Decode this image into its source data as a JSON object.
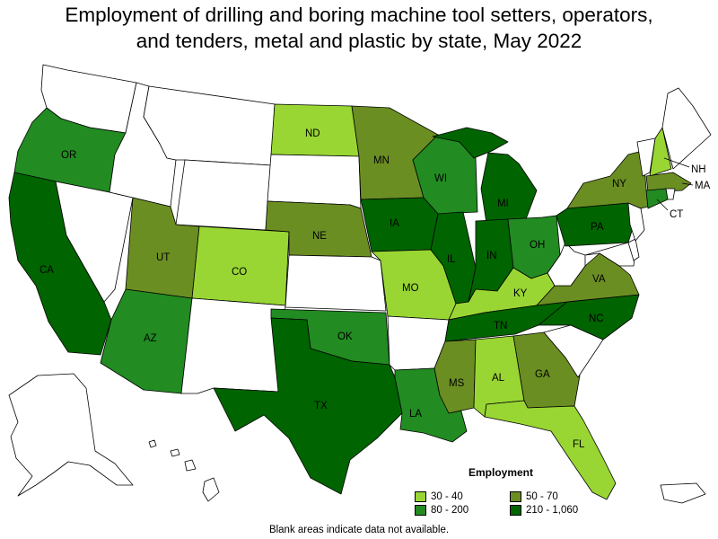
{
  "title_line1": "Employment of drilling and boring machine tool setters, operators,",
  "title_line2": "and tenders, metal and plastic by state, May 2022",
  "legend": {
    "title": "Employment",
    "items": [
      {
        "label": "30 - 40",
        "color": "#99d633"
      },
      {
        "label": "50 - 70",
        "color": "#6b8e23"
      },
      {
        "label": "80 - 200",
        "color": "#228b22"
      },
      {
        "label": "210 - 1,060",
        "color": "#006400"
      }
    ]
  },
  "footnote": "Blank areas indicate data not available.",
  "states": {
    "WA": "",
    "OR": "OR",
    "CA": "CA",
    "NV": "",
    "ID": "",
    "MT": "",
    "WY": "",
    "UT": "UT",
    "AZ": "AZ",
    "CO": "CO",
    "NM": "",
    "ND": "ND",
    "SD": "",
    "NE": "NE",
    "KS": "",
    "OK": "OK",
    "TX": "TX",
    "MN": "MN",
    "IA": "IA",
    "MO": "MO",
    "AR": "",
    "LA": "LA",
    "WI": "WI",
    "IL": "IL",
    "MI": "MI",
    "IN": "IN",
    "OH": "OH",
    "KY": "KY",
    "TN": "TN",
    "MS": "MS",
    "AL": "AL",
    "GA": "GA",
    "FL": "FL",
    "SC": "",
    "NC": "NC",
    "VA": "VA",
    "WV": "",
    "PA": "PA",
    "NY": "NY",
    "VT": "",
    "NH": "NH",
    "ME": "",
    "MA": "MA",
    "CT": "CT",
    "RI": "",
    "NJ": "",
    "DE": "",
    "MD": "",
    "AK": "",
    "HI": "",
    "PR": ""
  }
}
